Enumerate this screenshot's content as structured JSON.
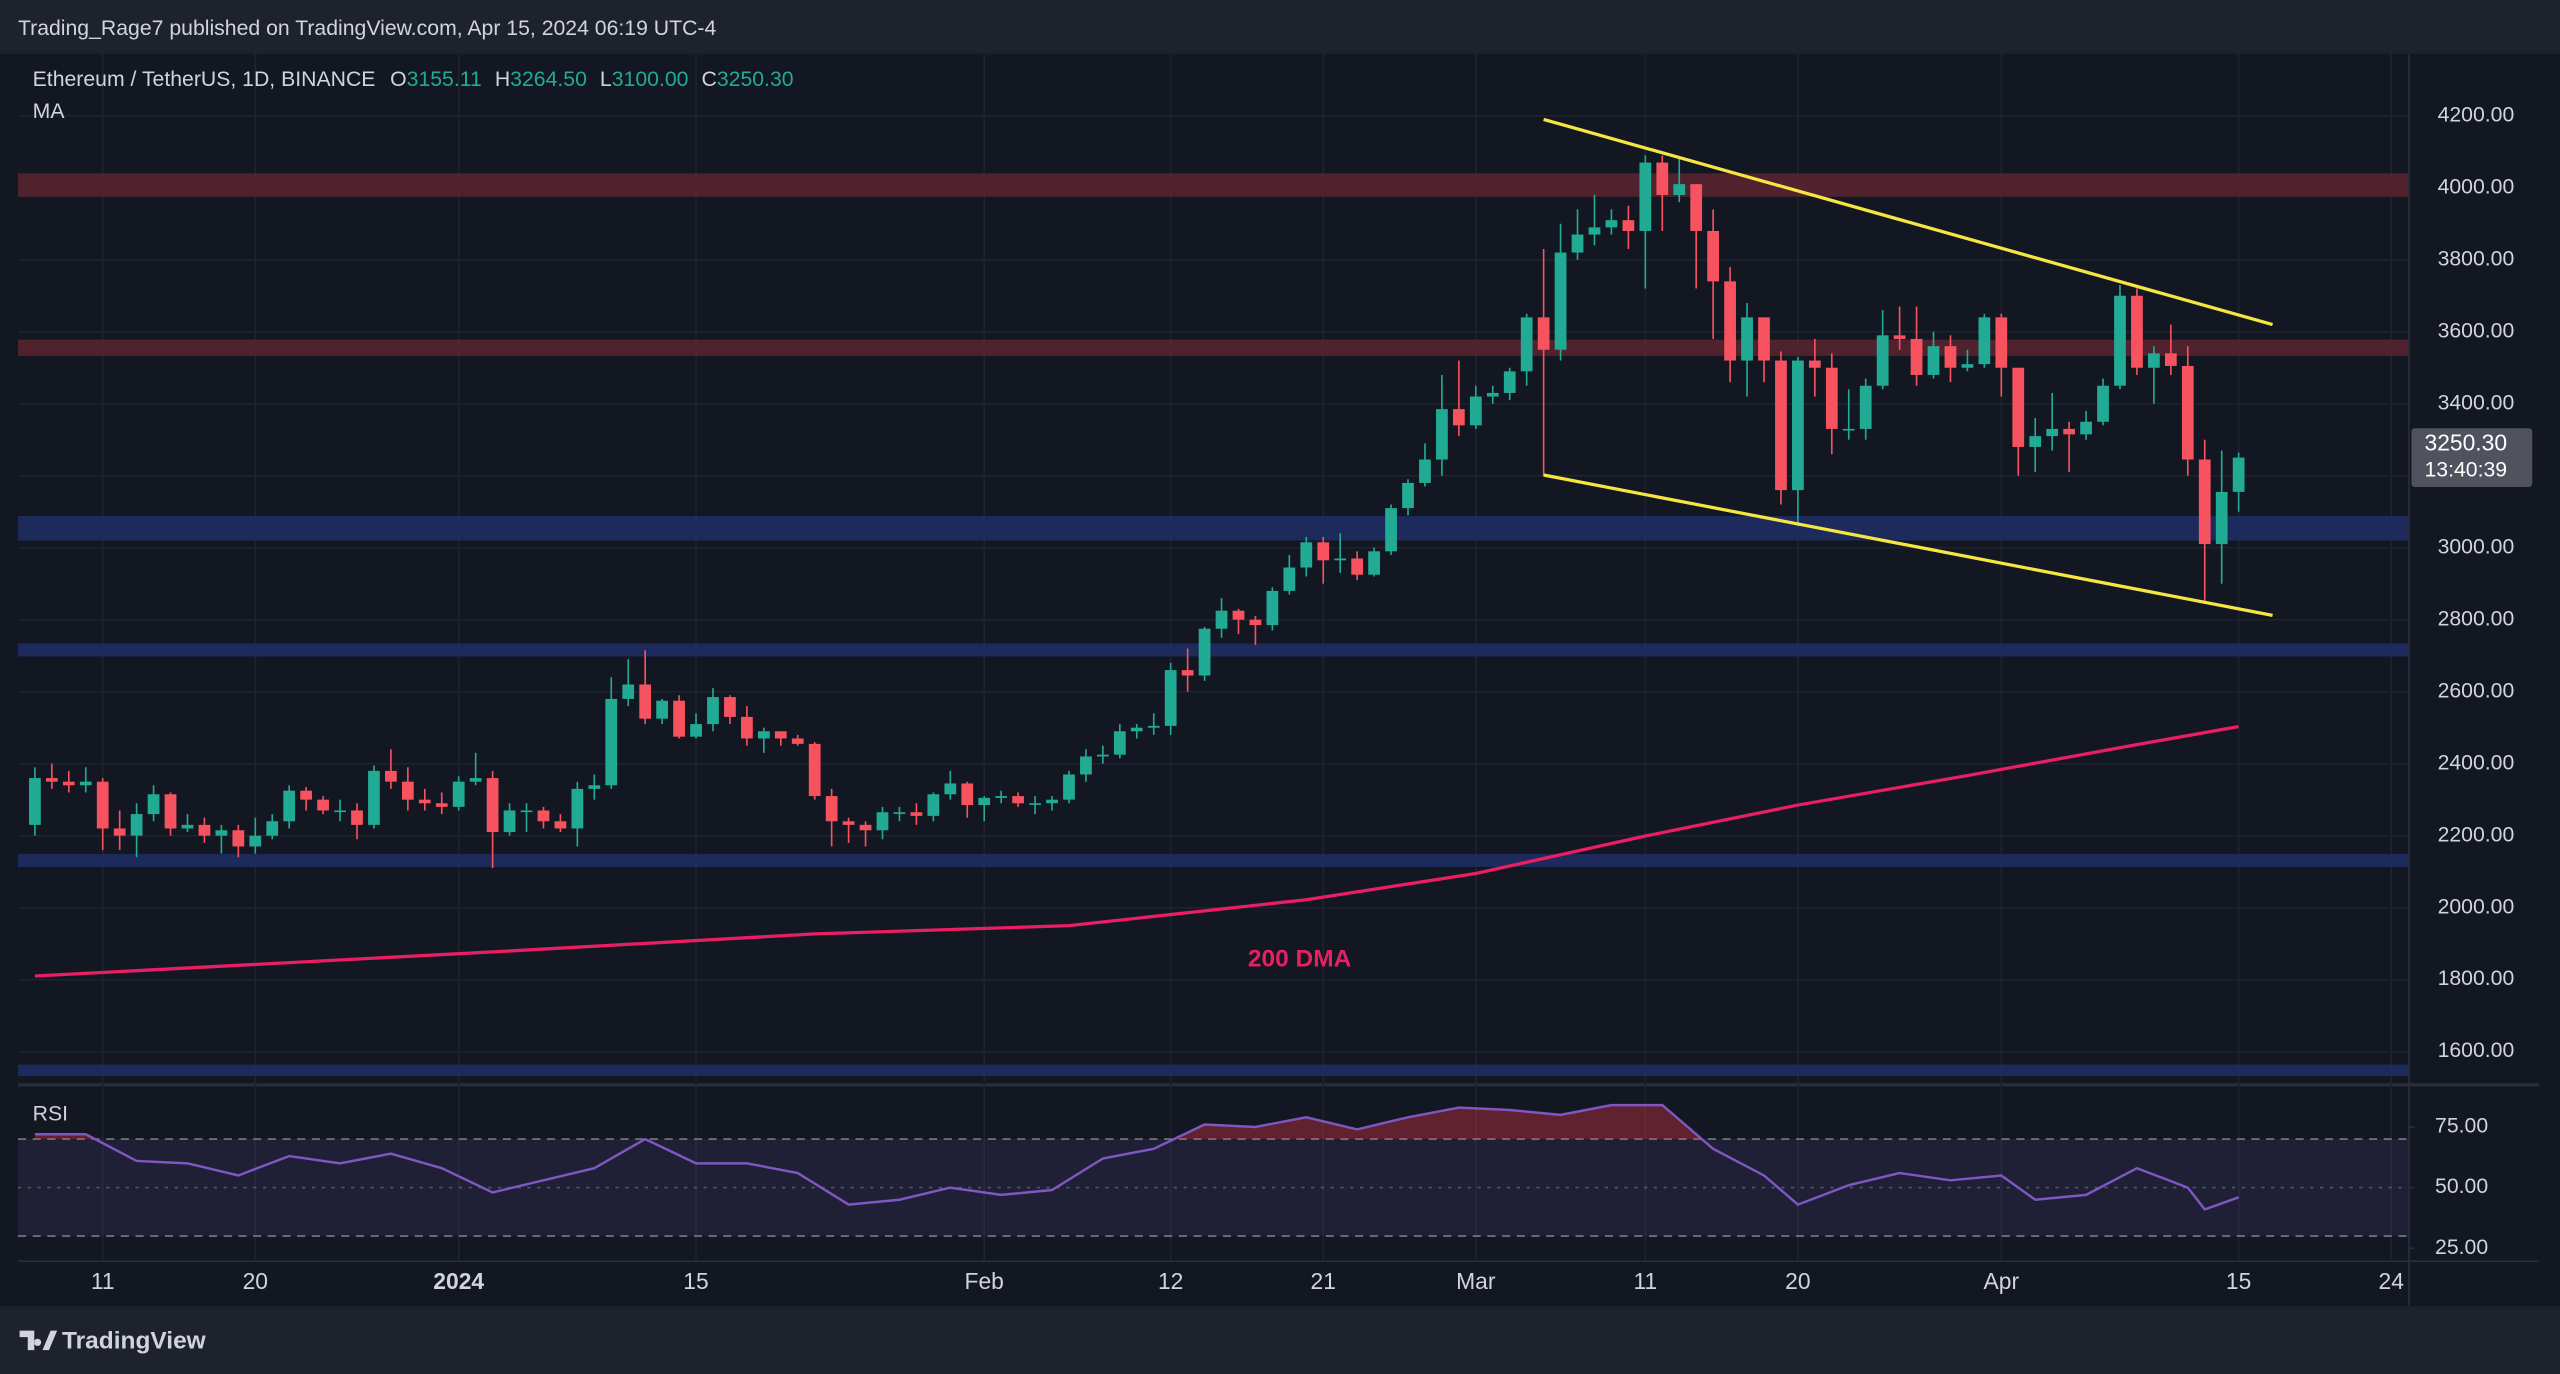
{
  "attribution": "Trading_Rage7 published on TradingView.com, Apr 15, 2024 06:19 UTC-4",
  "logo": "TradingView",
  "chart_data": {
    "type": "candlestick",
    "header": {
      "symbol": "Ethereum / TetherUS, 1D, BINANCE",
      "ohlc": [
        {
          "label": "O",
          "value": "3155.11"
        },
        {
          "label": "H",
          "value": "3264.50"
        },
        {
          "label": "L",
          "value": "3100.00"
        },
        {
          "label": "C",
          "value": "3250.30"
        }
      ]
    },
    "x": [
      "2023-12-07",
      "2023-12-08",
      "2023-12-09",
      "2023-12-10",
      "2023-12-11",
      "2023-12-12",
      "2023-12-13",
      "2023-12-14",
      "2023-12-15",
      "2023-12-16",
      "2023-12-17",
      "2023-12-18",
      "2023-12-19",
      "2023-12-20",
      "2023-12-21",
      "2023-12-22",
      "2023-12-23",
      "2023-12-24",
      "2023-12-25",
      "2023-12-26",
      "2023-12-27",
      "2023-12-28",
      "2023-12-29",
      "2023-12-30",
      "2023-12-31",
      "2024-01-01",
      "2024-01-02",
      "2024-01-03",
      "2024-01-04",
      "2024-01-05",
      "2024-01-06",
      "2024-01-07",
      "2024-01-08",
      "2024-01-09",
      "2024-01-10",
      "2024-01-11",
      "2024-01-12",
      "2024-01-13",
      "2024-01-14",
      "2024-01-15",
      "2024-01-16",
      "2024-01-17",
      "2024-01-18",
      "2024-01-19",
      "2024-01-20",
      "2024-01-21",
      "2024-01-22",
      "2024-01-23",
      "2024-01-24",
      "2024-01-25",
      "2024-01-26",
      "2024-01-27",
      "2024-01-28",
      "2024-01-29",
      "2024-01-30",
      "2024-01-31",
      "2024-02-01",
      "2024-02-02",
      "2024-02-03",
      "2024-02-04",
      "2024-02-05",
      "2024-02-06",
      "2024-02-07",
      "2024-02-08",
      "2024-02-09",
      "2024-02-10",
      "2024-02-11",
      "2024-02-12",
      "2024-02-13",
      "2024-02-14",
      "2024-02-15",
      "2024-02-16",
      "2024-02-17",
      "2024-02-18",
      "2024-02-19",
      "2024-02-20",
      "2024-02-21",
      "2024-02-22",
      "2024-02-23",
      "2024-02-24",
      "2024-02-25",
      "2024-02-26",
      "2024-02-27",
      "2024-02-28",
      "2024-02-29",
      "2024-03-01",
      "2024-03-02",
      "2024-03-03",
      "2024-03-04",
      "2024-03-05",
      "2024-03-06",
      "2024-03-07",
      "2024-03-08",
      "2024-03-09",
      "2024-03-10",
      "2024-03-11",
      "2024-03-12",
      "2024-03-13",
      "2024-03-14",
      "2024-03-15",
      "2024-03-16",
      "2024-03-17",
      "2024-03-18",
      "2024-03-19",
      "2024-03-20",
      "2024-03-21",
      "2024-03-22",
      "2024-03-23",
      "2024-03-24",
      "2024-03-25",
      "2024-03-26",
      "2024-03-27",
      "2024-03-28",
      "2024-03-29",
      "2024-03-30",
      "2024-03-31",
      "2024-04-01",
      "2024-04-02",
      "2024-04-03",
      "2024-04-04",
      "2024-04-05",
      "2024-04-06",
      "2024-04-07",
      "2024-04-08",
      "2024-04-09",
      "2024-04-10",
      "2024-04-11",
      "2024-04-12",
      "2024-04-13",
      "2024-04-14",
      "2024-04-15"
    ],
    "open": [
      2230,
      2360,
      2350,
      2340,
      2350,
      2220,
      2200,
      2260,
      2315,
      2220,
      2230,
      2200,
      2215,
      2170,
      2200,
      2240,
      2325,
      2300,
      2270,
      2270,
      2230,
      2380,
      2350,
      2300,
      2290,
      2280,
      2350,
      2360,
      2210,
      2270,
      2270,
      2240,
      2220,
      2330,
      2340,
      2580,
      2620,
      2525,
      2575,
      2475,
      2510,
      2585,
      2530,
      2470,
      2490,
      2470,
      2455,
      2310,
      2240,
      2230,
      2215,
      2265,
      2265,
      2255,
      2315,
      2345,
      2285,
      2305,
      2310,
      2290,
      2290,
      2300,
      2370,
      2420,
      2425,
      2490,
      2500,
      2505,
      2660,
      2645,
      2775,
      2825,
      2800,
      2785,
      2880,
      2945,
      3015,
      2965,
      2970,
      2925,
      2990,
      3110,
      3180,
      3245,
      3385,
      3340,
      3420,
      3430,
      3490,
      3640,
      3550,
      3820,
      3870,
      3890,
      3910,
      3880,
      4070,
      3980,
      4010,
      3880,
      3740,
      3520,
      3640,
      3520,
      3160,
      3520,
      3500,
      3330,
      3330,
      3450,
      3590,
      3580,
      3480,
      3560,
      3500,
      3510,
      3640,
      3500,
      3280,
      3310,
      3330,
      3315,
      3350,
      3450,
      3700,
      3500,
      3540,
      3505,
      3245,
      3010,
      3155.11
    ],
    "close": [
      2360,
      2350,
      2340,
      2350,
      2220,
      2200,
      2260,
      2315,
      2220,
      2230,
      2200,
      2215,
      2170,
      2200,
      2240,
      2325,
      2300,
      2270,
      2270,
      2230,
      2380,
      2350,
      2300,
      2290,
      2280,
      2350,
      2360,
      2210,
      2270,
      2270,
      2240,
      2220,
      2330,
      2340,
      2580,
      2620,
      2525,
      2575,
      2475,
      2510,
      2585,
      2530,
      2470,
      2490,
      2470,
      2455,
      2310,
      2240,
      2230,
      2215,
      2265,
      2265,
      2255,
      2315,
      2345,
      2285,
      2305,
      2310,
      2290,
      2290,
      2300,
      2370,
      2420,
      2425,
      2490,
      2500,
      2505,
      2660,
      2645,
      2775,
      2825,
      2800,
      2785,
      2880,
      2945,
      3015,
      2965,
      2970,
      2925,
      2990,
      3110,
      3180,
      3245,
      3385,
      3340,
      3420,
      3430,
      3490,
      3640,
      3550,
      3820,
      3870,
      3890,
      3910,
      3880,
      4070,
      3980,
      4010,
      3880,
      3740,
      3520,
      3640,
      3520,
      3160,
      3520,
      3500,
      3330,
      3330,
      3450,
      3590,
      3580,
      3480,
      3560,
      3500,
      3510,
      3640,
      3500,
      3280,
      3310,
      3330,
      3315,
      3350,
      3450,
      3700,
      3500,
      3540,
      3505,
      3245,
      3010,
      3155,
      3250.3
    ],
    "high": [
      2390,
      2400,
      2380,
      2390,
      2360,
      2270,
      2290,
      2340,
      2320,
      2260,
      2250,
      2230,
      2230,
      2250,
      2260,
      2340,
      2335,
      2310,
      2300,
      2290,
      2395,
      2440,
      2390,
      2330,
      2320,
      2365,
      2430,
      2380,
      2290,
      2290,
      2280,
      2260,
      2350,
      2370,
      2640,
      2690,
      2715,
      2580,
      2590,
      2540,
      2610,
      2590,
      2560,
      2500,
      2480,
      2480,
      2460,
      2330,
      2250,
      2240,
      2280,
      2280,
      2290,
      2320,
      2380,
      2350,
      2310,
      2325,
      2320,
      2310,
      2310,
      2380,
      2440,
      2450,
      2510,
      2510,
      2540,
      2680,
      2720,
      2780,
      2860,
      2830,
      2810,
      2890,
      2980,
      3030,
      3030,
      3040,
      2990,
      3000,
      3120,
      3190,
      3290,
      3480,
      3520,
      3450,
      3450,
      3500,
      3650,
      3830,
      3900,
      3940,
      3980,
      3940,
      3950,
      4090,
      4090,
      4080,
      4010,
      3940,
      3780,
      3680,
      3640,
      3545,
      3530,
      3580,
      3540,
      3440,
      3470,
      3660,
      3670,
      3670,
      3600,
      3590,
      3550,
      3650,
      3650,
      3500,
      3360,
      3430,
      3350,
      3380,
      3470,
      3730,
      3720,
      3560,
      3620,
      3560,
      3300,
      3270,
      3264.5
    ],
    "low": [
      2200,
      2330,
      2320,
      2320,
      2160,
      2160,
      2140,
      2240,
      2200,
      2210,
      2180,
      2150,
      2140,
      2150,
      2190,
      2220,
      2270,
      2260,
      2240,
      2190,
      2220,
      2330,
      2270,
      2270,
      2260,
      2270,
      2340,
      2110,
      2200,
      2210,
      2220,
      2210,
      2170,
      2300,
      2330,
      2560,
      2510,
      2510,
      2470,
      2470,
      2490,
      2510,
      2450,
      2430,
      2450,
      2450,
      2300,
      2170,
      2180,
      2170,
      2190,
      2240,
      2230,
      2240,
      2300,
      2250,
      2240,
      2290,
      2280,
      2260,
      2270,
      2290,
      2350,
      2400,
      2415,
      2470,
      2480,
      2480,
      2600,
      2630,
      2750,
      2760,
      2730,
      2770,
      2870,
      2920,
      2900,
      2930,
      2910,
      2920,
      2980,
      3090,
      3170,
      3200,
      3310,
      3330,
      3400,
      3410,
      3450,
      3200,
      3520,
      3800,
      3840,
      3870,
      3830,
      3720,
      3880,
      3960,
      3720,
      3580,
      3460,
      3420,
      3460,
      3120,
      3060,
      3420,
      3260,
      3300,
      3300,
      3440,
      3550,
      3450,
      3470,
      3460,
      3490,
      3500,
      3420,
      3200,
      3210,
      3270,
      3210,
      3300,
      3340,
      3440,
      3480,
      3400,
      3480,
      3200,
      2850,
      2900,
      3100
    ],
    "up_color": "#22ab94",
    "down_color": "#f7525f",
    "xlim": [
      "2023-12-06",
      "2024-04-25"
    ],
    "xticks": [
      {
        "value": "2023-12-11",
        "label": "11"
      },
      {
        "value": "2023-12-20",
        "label": "20"
      },
      {
        "value": "2024-01-01",
        "label": "2024"
      },
      {
        "value": "2024-01-15",
        "label": "15"
      },
      {
        "value": "2024-02-01",
        "label": "Feb"
      },
      {
        "value": "2024-02-12",
        "label": "12"
      },
      {
        "value": "2024-02-21",
        "label": "21"
      },
      {
        "value": "2024-03-01",
        "label": "Mar"
      },
      {
        "value": "2024-03-11",
        "label": "11"
      },
      {
        "value": "2024-03-20",
        "label": "20"
      },
      {
        "value": "2024-04-01",
        "label": "Apr"
      },
      {
        "value": "2024-04-15",
        "label": "15"
      },
      {
        "value": "2024-04-24",
        "label": "24"
      }
    ],
    "ylim": [
      1519,
      4372
    ],
    "yticks": [
      {
        "value": 1600,
        "label": "1600.00"
      },
      {
        "value": 1800,
        "label": "1800.00"
      },
      {
        "value": 2000,
        "label": "2000.00"
      },
      {
        "value": 2200,
        "label": "2200.00"
      },
      {
        "value": 2400,
        "label": "2400.00"
      },
      {
        "value": 2600,
        "label": "2600.00"
      },
      {
        "value": 2800,
        "label": "2800.00"
      },
      {
        "value": 3000,
        "label": "3000.00"
      },
      {
        "value": 3200,
        "label": "3200.00"
      },
      {
        "value": 3400,
        "label": "3400.00"
      },
      {
        "value": 3600,
        "label": "3600.00"
      },
      {
        "value": 3800,
        "label": "3800.00"
      },
      {
        "value": 4000,
        "label": "4000.00"
      },
      {
        "value": 4200,
        "label": "4200.00"
      }
    ],
    "grid": true,
    "zones": [
      {
        "low": 3975,
        "high": 4040,
        "color": "#5c2530"
      },
      {
        "low": 3533,
        "high": 3578,
        "color": "#5c2530"
      },
      {
        "low": 3020,
        "high": 3088,
        "color": "#1f2f66"
      },
      {
        "low": 2698,
        "high": 2734,
        "color": "#1f2f66"
      },
      {
        "low": 2113,
        "high": 2149,
        "color": "#1f2f66"
      },
      {
        "low": 1532,
        "high": 1564,
        "color": "#1f2f66"
      }
    ],
    "trendlines": {
      "color": "#f5e642",
      "lines": [
        {
          "x": [
            "2024-03-05",
            "2024-04-17"
          ],
          "values": [
            4190,
            3620
          ]
        },
        {
          "x": [
            "2024-03-05",
            "2024-04-17"
          ],
          "values": [
            3202,
            2812
          ]
        }
      ]
    },
    "ma": {
      "name": "MA",
      "color": "#e91e63",
      "x": [
        "2023-12-07",
        "2024-01-03",
        "2024-01-22",
        "2024-02-06",
        "2024-02-20",
        "2024-03-01",
        "2024-03-11",
        "2024-03-20",
        "2024-03-30",
        "2024-04-09",
        "2024-04-15"
      ],
      "values": [
        1810,
        1877,
        1927,
        1950,
        2022,
        2095,
        2199,
        2285,
        2367,
        2453,
        2503
      ]
    },
    "annotation": "200 DMA",
    "last_price": {
      "label": "3250.30",
      "countdown": "13:40:39",
      "color": "#50535e"
    },
    "rsi": {
      "name": "RSI",
      "color": "#7e57c2",
      "overbought_color": "#f23645",
      "ylim": [
        20,
        90
      ],
      "yticks": [
        {
          "value": 25,
          "label": "25.00"
        },
        {
          "value": 50,
          "label": "50.00"
        },
        {
          "value": 75,
          "label": "75.00"
        }
      ],
      "bands": [
        30,
        70
      ],
      "mid": 50,
      "x": [
        "2023-12-07",
        "2023-12-10",
        "2023-12-13",
        "2023-12-16",
        "2023-12-19",
        "2023-12-22",
        "2023-12-25",
        "2023-12-28",
        "2023-12-31",
        "2024-01-03",
        "2024-01-06",
        "2024-01-09",
        "2024-01-12",
        "2024-01-15",
        "2024-01-18",
        "2024-01-21",
        "2024-01-24",
        "2024-01-27",
        "2024-01-30",
        "2024-02-02",
        "2024-02-05",
        "2024-02-08",
        "2024-02-11",
        "2024-02-14",
        "2024-02-17",
        "2024-02-20",
        "2024-02-23",
        "2024-02-26",
        "2024-02-29",
        "2024-03-03",
        "2024-03-06",
        "2024-03-09",
        "2024-03-12",
        "2024-03-15",
        "2024-03-18",
        "2024-03-20",
        "2024-03-23",
        "2024-03-26",
        "2024-03-29",
        "2024-04-01",
        "2024-04-03",
        "2024-04-06",
        "2024-04-09",
        "2024-04-12",
        "2024-04-13",
        "2024-04-15"
      ],
      "values": [
        72,
        72,
        61,
        60,
        55,
        63,
        60,
        64,
        58,
        48,
        53,
        58,
        70,
        60,
        60,
        56,
        43,
        45,
        50,
        47,
        49,
        62,
        66,
        76,
        75,
        79,
        74,
        79,
        83,
        82,
        80,
        84,
        84,
        66,
        55,
        43,
        51,
        56,
        53,
        55,
        45,
        47,
        58,
        50,
        41,
        46
      ]
    }
  }
}
